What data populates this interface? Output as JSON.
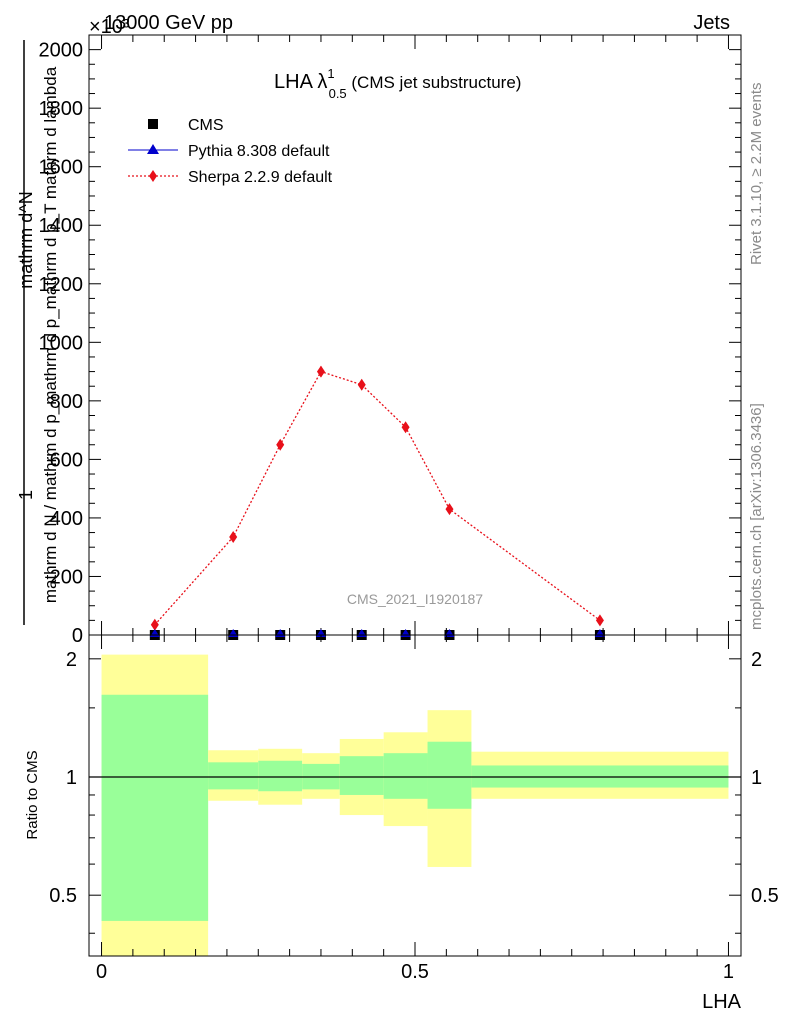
{
  "header": {
    "left": "13000 GeV pp",
    "right": "Jets",
    "exponent_label": "×10³"
  },
  "title": {
    "main": "LHA λ",
    "sup": "1",
    "sub": "0.5",
    "suffix": " (CMS jet substructure)"
  },
  "legend": [
    {
      "label": "CMS",
      "marker": "square",
      "color": "#000000"
    },
    {
      "label": "Pythia 8.308 default",
      "marker": "triangle",
      "color": "#0000cc"
    },
    {
      "label": "Sherpa 2.2.9 default",
      "marker": "diamond",
      "color": "#e8101a"
    }
  ],
  "watermark": "CMS_2021_I1920187",
  "side_text": {
    "rivet": "Rivet 3.1.10, ≥ 2.2M events",
    "mcplots": "mcplots.cern.ch [arXiv:1306.3436]"
  },
  "axes": {
    "main_ylabel_num": "1",
    "main_ylabel_den": "mathrm d N / mathrm d p_mathrm d p_mathrm d p_T mathrm d lambda",
    "main_ylabel_top": "mathrm d^N",
    "ratio_ylabel": "Ratio to CMS",
    "xlabel": "LHA"
  },
  "chart_data": [
    {
      "type": "line",
      "panel": "main",
      "ylim": [
        0,
        2050
      ],
      "y_scale_factor": "x10^3",
      "yticks": [
        0,
        200,
        400,
        600,
        800,
        1000,
        1200,
        1400,
        1600,
        1800,
        2000
      ],
      "xlim": [
        -0.02,
        1.02
      ],
      "series": [
        {
          "name": "CMS",
          "x": [
            0.085,
            0.21,
            0.285,
            0.35,
            0.415,
            0.485,
            0.555,
            0.795
          ],
          "y": [
            0,
            0,
            0,
            0,
            0,
            0,
            0,
            0
          ]
        },
        {
          "name": "Sherpa 2.2.9 default",
          "x": [
            0.085,
            0.21,
            0.285,
            0.35,
            0.415,
            0.485,
            0.555,
            0.795
          ],
          "y": [
            35,
            335,
            650,
            900,
            855,
            710,
            430,
            50
          ],
          "yerr": [
            8,
            10,
            14,
            18,
            18,
            16,
            10,
            6
          ]
        }
      ]
    },
    {
      "type": "area",
      "panel": "ratio",
      "ylim": [
        0.35,
        2.3
      ],
      "yscale": "log",
      "yticks": [
        0.5,
        1,
        2
      ],
      "xticks": [
        0,
        0.5,
        1
      ],
      "xlim": [
        -0.02,
        1.02
      ],
      "reference_line": 1,
      "bands": [
        {
          "x0": 0.0,
          "x1": 0.17,
          "inner": [
            0.43,
            1.62
          ],
          "outer": [
            0.35,
            2.05
          ]
        },
        {
          "x0": 0.17,
          "x1": 0.25,
          "inner": [
            0.93,
            1.09
          ],
          "outer": [
            0.87,
            1.17
          ]
        },
        {
          "x0": 0.25,
          "x1": 0.32,
          "inner": [
            0.92,
            1.1
          ],
          "outer": [
            0.85,
            1.18
          ]
        },
        {
          "x0": 0.32,
          "x1": 0.38,
          "inner": [
            0.93,
            1.08
          ],
          "outer": [
            0.88,
            1.15
          ]
        },
        {
          "x0": 0.38,
          "x1": 0.45,
          "inner": [
            0.9,
            1.13
          ],
          "outer": [
            0.8,
            1.25
          ]
        },
        {
          "x0": 0.45,
          "x1": 0.52,
          "inner": [
            0.88,
            1.15
          ],
          "outer": [
            0.75,
            1.3
          ]
        },
        {
          "x0": 0.52,
          "x1": 0.59,
          "inner": [
            0.83,
            1.23
          ],
          "outer": [
            0.59,
            1.48
          ]
        },
        {
          "x0": 0.59,
          "x1": 1.0,
          "inner": [
            0.94,
            1.07
          ],
          "outer": [
            0.88,
            1.16
          ]
        }
      ]
    }
  ]
}
